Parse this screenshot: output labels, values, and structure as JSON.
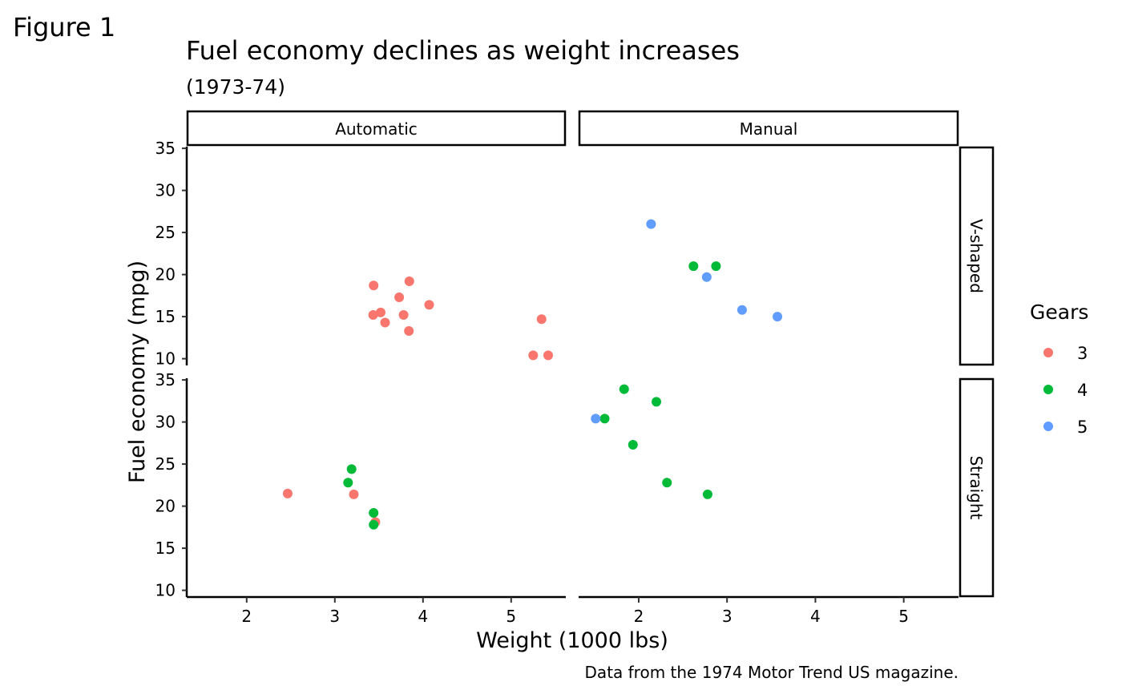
{
  "figure_label": "Figure 1",
  "chart_data": {
    "type": "scatter",
    "title": "Fuel economy declines as weight increases",
    "subtitle": "(1973-74)",
    "xlabel": "Weight (1000 lbs)",
    "ylabel": "Fuel economy (mpg)",
    "caption": "Data from the 1974 Motor Trend US magazine.",
    "xlim": [
      1.32,
      5.62
    ],
    "ylim": [
      9.2,
      35.2
    ],
    "x_ticks": [
      2,
      3,
      4,
      5
    ],
    "y_ticks": [
      10,
      15,
      20,
      25,
      30,
      35
    ],
    "grid": false,
    "legend": {
      "title": "Gears",
      "position": "right",
      "entries": [
        {
          "label": "3",
          "color": "#F8766D"
        },
        {
          "label": "4",
          "color": "#00BA38"
        },
        {
          "label": "5",
          "color": "#619CFF"
        }
      ]
    },
    "facet_columns": [
      "Automatic",
      "Manual"
    ],
    "facet_rows": [
      "V-shaped",
      "Straight"
    ],
    "panels": [
      {
        "col": "Automatic",
        "row": "V-shaped",
        "points": [
          {
            "x": 3.44,
            "y": 18.7,
            "gear": "3"
          },
          {
            "x": 3.57,
            "y": 14.3,
            "gear": "3"
          },
          {
            "x": 4.07,
            "y": 16.4,
            "gear": "3"
          },
          {
            "x": 3.73,
            "y": 17.3,
            "gear": "3"
          },
          {
            "x": 3.78,
            "y": 15.2,
            "gear": "3"
          },
          {
            "x": 5.25,
            "y": 10.4,
            "gear": "3"
          },
          {
            "x": 5.42,
            "y": 10.4,
            "gear": "3"
          },
          {
            "x": 5.345,
            "y": 14.7,
            "gear": "3"
          },
          {
            "x": 3.52,
            "y": 15.5,
            "gear": "3"
          },
          {
            "x": 3.435,
            "y": 15.2,
            "gear": "3"
          },
          {
            "x": 3.84,
            "y": 13.3,
            "gear": "3"
          },
          {
            "x": 3.845,
            "y": 19.2,
            "gear": "3"
          }
        ]
      },
      {
        "col": "Manual",
        "row": "V-shaped",
        "points": [
          {
            "x": 2.62,
            "y": 21.0,
            "gear": "4"
          },
          {
            "x": 2.875,
            "y": 21.0,
            "gear": "4"
          },
          {
            "x": 2.14,
            "y": 26.0,
            "gear": "5"
          },
          {
            "x": 3.17,
            "y": 15.8,
            "gear": "5"
          },
          {
            "x": 2.77,
            "y": 19.7,
            "gear": "5"
          },
          {
            "x": 3.57,
            "y": 15.0,
            "gear": "5"
          }
        ]
      },
      {
        "col": "Automatic",
        "row": "Straight",
        "points": [
          {
            "x": 3.215,
            "y": 21.4,
            "gear": "3"
          },
          {
            "x": 3.46,
            "y": 18.1,
            "gear": "3"
          },
          {
            "x": 2.465,
            "y": 21.5,
            "gear": "3"
          },
          {
            "x": 3.19,
            "y": 24.4,
            "gear": "4"
          },
          {
            "x": 3.15,
            "y": 22.8,
            "gear": "4"
          },
          {
            "x": 3.44,
            "y": 19.2,
            "gear": "4"
          },
          {
            "x": 3.44,
            "y": 17.8,
            "gear": "4"
          }
        ]
      },
      {
        "col": "Manual",
        "row": "Straight",
        "points": [
          {
            "x": 2.32,
            "y": 22.8,
            "gear": "4"
          },
          {
            "x": 2.2,
            "y": 32.4,
            "gear": "4"
          },
          {
            "x": 1.615,
            "y": 30.4,
            "gear": "4"
          },
          {
            "x": 1.835,
            "y": 33.9,
            "gear": "4"
          },
          {
            "x": 1.935,
            "y": 27.3,
            "gear": "4"
          },
          {
            "x": 2.78,
            "y": 21.4,
            "gear": "4"
          },
          {
            "x": 1.513,
            "y": 30.4,
            "gear": "5"
          }
        ]
      }
    ]
  }
}
